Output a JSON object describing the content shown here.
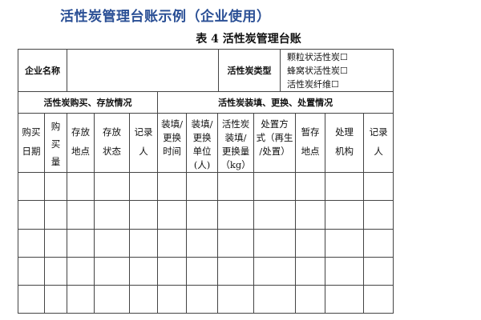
{
  "page_title": "活性炭管理台账示例（企业使用）",
  "table_caption": "表 4  活性炭管理台账",
  "company_row": {
    "company_name_label": "企业名称",
    "company_name_value": "",
    "carbon_type_label": "活性炭类型",
    "carbon_type_options": [
      "颗粒状活性炭☐",
      "蜂窝状活性炭☐",
      "活性炭纤维☐"
    ]
  },
  "sections": [
    "活性炭购买、存放情况",
    "活性炭装填、更换、处置情况"
  ],
  "columns": [
    "购买日期",
    "购买量",
    "存放地点",
    "存放状态",
    "记录人",
    "装填/更换时间",
    "装填/更换单位(人)",
    "活性炭装填/更换量（kg）",
    "处置方式（再生/处置）",
    "暂存地点",
    "处理机构",
    "记录人"
  ],
  "column_lines": [
    [
      "购买",
      "日期"
    ],
    [
      "购",
      "买",
      "量"
    ],
    [
      "存放",
      "地点"
    ],
    [
      "存放",
      "状态"
    ],
    [
      "记录",
      "人"
    ],
    [
      "装填/",
      "更换",
      "时间"
    ],
    [
      "装填/",
      "更换",
      "单位",
      "(人)"
    ],
    [
      "活性炭",
      "装填/",
      "更换量",
      "（kg）"
    ],
    [
      "处置方",
      "式（再生",
      "/处置）"
    ],
    [
      "暂存",
      "地点"
    ],
    [
      "处理",
      "机构"
    ],
    [
      "记录",
      "人"
    ]
  ],
  "empty_rows": 5
}
